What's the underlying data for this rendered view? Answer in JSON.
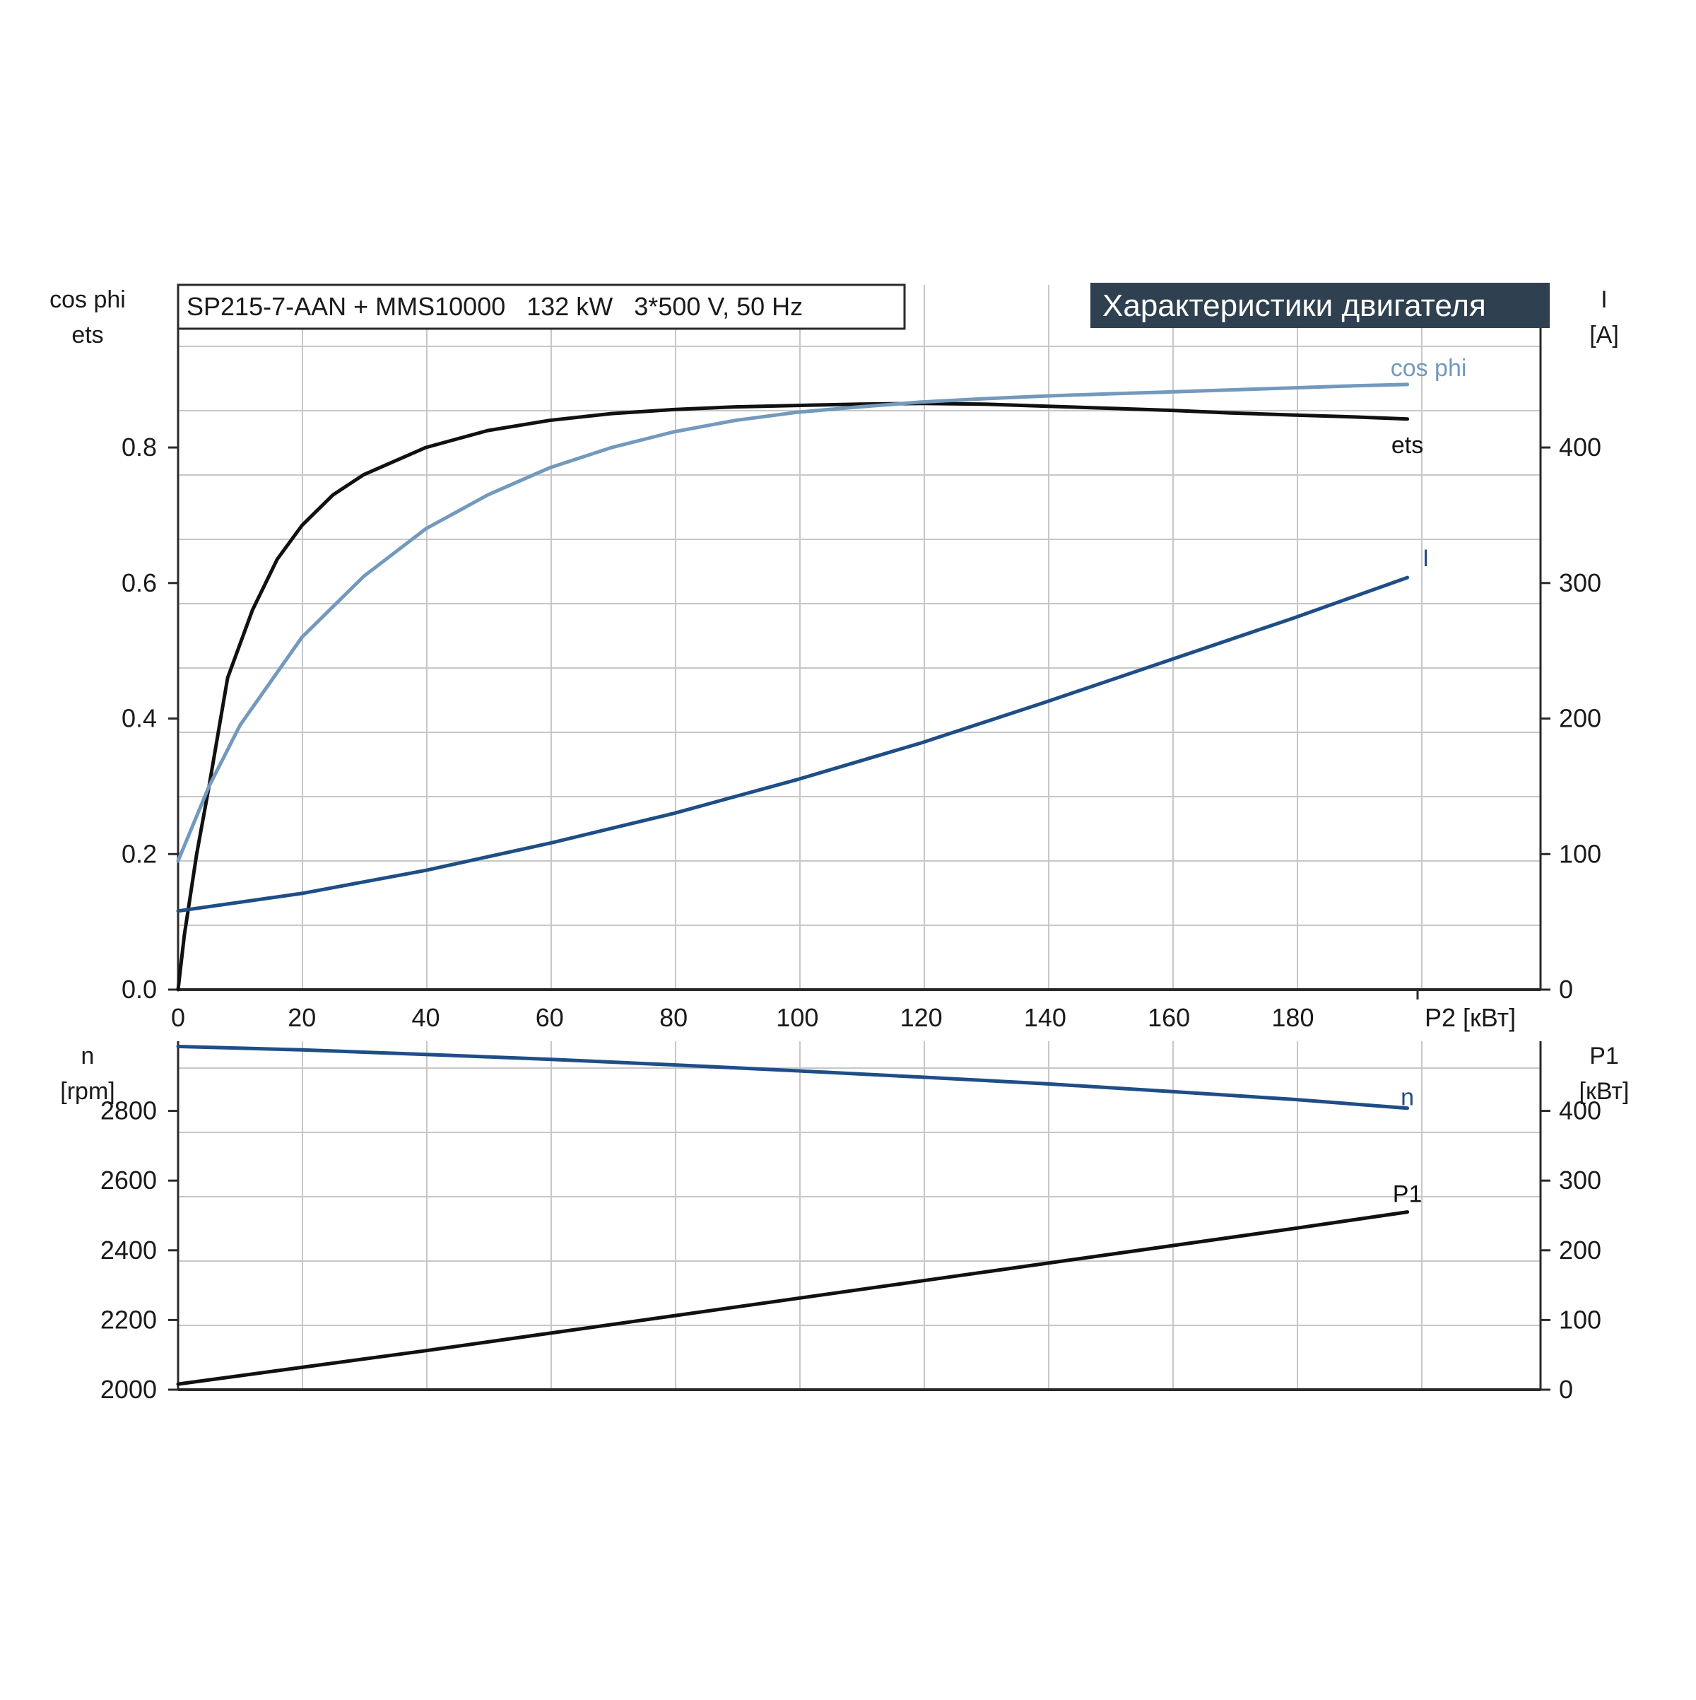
{
  "header": {
    "model_text": "SP215-7-AAN + MMS10000   132 kW   3*500 V, 50 Hz",
    "banner_text": "Характеристики двигателя"
  },
  "colors": {
    "ets": "#111111",
    "cos_phi": "#7399bd",
    "current": "#1f4e87",
    "speed": "#1f4e87",
    "p1": "#111111",
    "grid": "#c7c7c7",
    "axis": "#2a2a2a",
    "banner_bg": "#2f4050"
  },
  "chart_data": [
    {
      "type": "line",
      "x_axis": {
        "label": "P2 [кВт]",
        "range": [
          0,
          220
        ],
        "ticks": [
          0,
          20,
          40,
          60,
          80,
          100,
          120,
          140,
          160,
          180
        ]
      },
      "y_left": {
        "label_line1": "cos phi",
        "label_line2": "ets",
        "range": [
          0,
          1.04
        ],
        "ticks": [
          "0.0",
          "0.2",
          "0.4",
          "0.6",
          "0.8"
        ]
      },
      "y_right": {
        "label_line1": "I",
        "label_line2": "[A]",
        "range": [
          0,
          520
        ],
        "ticks": [
          "0",
          "100",
          "200",
          "300",
          "400"
        ]
      },
      "grid": true,
      "series": [
        {
          "name": "ets",
          "axis": "left",
          "x": [
            0,
            1,
            3,
            5,
            8,
            12,
            16,
            20,
            25,
            30,
            40,
            50,
            60,
            70,
            80,
            90,
            100,
            110,
            120,
            130,
            140,
            150,
            160,
            170,
            180,
            190,
            198.5
          ],
          "y": [
            0.0,
            0.08,
            0.2,
            0.3,
            0.46,
            0.56,
            0.635,
            0.685,
            0.73,
            0.76,
            0.8,
            0.825,
            0.84,
            0.85,
            0.856,
            0.86,
            0.862,
            0.864,
            0.865,
            0.864,
            0.861,
            0.858,
            0.855,
            0.851,
            0.848,
            0.845,
            0.842
          ]
        },
        {
          "name": "cos phi",
          "axis": "left",
          "x": [
            0,
            5,
            10,
            20,
            30,
            40,
            50,
            60,
            70,
            80,
            90,
            100,
            110,
            120,
            130,
            140,
            150,
            160,
            170,
            180,
            190,
            198.5
          ],
          "y": [
            0.19,
            0.3,
            0.39,
            0.52,
            0.61,
            0.68,
            0.73,
            0.77,
            0.8,
            0.823,
            0.84,
            0.852,
            0.86,
            0.867,
            0.872,
            0.876,
            0.879,
            0.882,
            0.885,
            0.888,
            0.891,
            0.893
          ]
        },
        {
          "name": "I",
          "axis": "right",
          "x": [
            0,
            20,
            40,
            60,
            80,
            100,
            120,
            140,
            160,
            180,
            198.5
          ],
          "y": [
            58,
            71,
            88,
            108,
            130,
            155,
            182,
            212,
            243,
            274,
            304
          ]
        }
      ]
    },
    {
      "type": "line",
      "x_axis": {
        "range": [
          0,
          220
        ]
      },
      "y_left": {
        "label_line1": "n",
        "label_line2": "[rpm]",
        "range": [
          2000,
          3000
        ],
        "ticks": [
          "2000",
          "2200",
          "2400",
          "2600",
          "2800"
        ]
      },
      "y_right": {
        "label_line1": "P1",
        "label_line2": "[кВт]",
        "range": [
          0,
          500
        ],
        "ticks": [
          "0",
          "100",
          "200",
          "300",
          "400"
        ]
      },
      "grid": true,
      "series": [
        {
          "name": "n",
          "axis": "left",
          "x": [
            0,
            20,
            40,
            60,
            80,
            100,
            120,
            140,
            160,
            180,
            198.5
          ],
          "y": [
            2985,
            2975,
            2962,
            2948,
            2932,
            2915,
            2897,
            2878,
            2856,
            2833,
            2808
          ]
        },
        {
          "name": "P1",
          "axis": "right",
          "x": [
            0,
            20,
            40,
            60,
            80,
            100,
            120,
            140,
            160,
            180,
            198.5
          ],
          "y": [
            8,
            32,
            56,
            81,
            106,
            131,
            156,
            181,
            206,
            231,
            255
          ]
        }
      ]
    }
  ]
}
